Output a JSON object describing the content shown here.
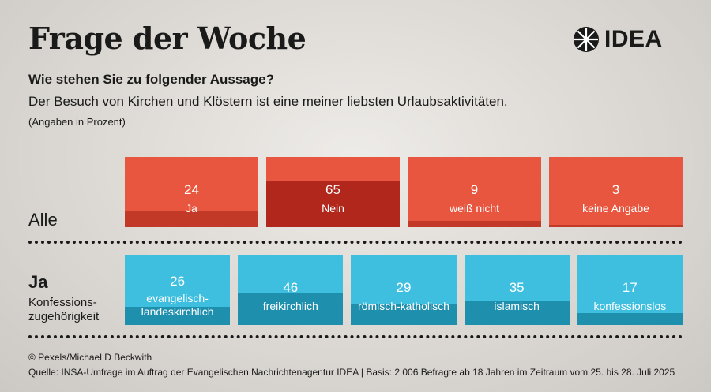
{
  "header": {
    "title": "Frage der Woche",
    "logo_text": "IDEA"
  },
  "question": "Wie stehen Sie zu folgender Aussage?",
  "statement": "Der Besuch von Kirchen und Klöstern ist eine meiner liebsten Urlaubsaktivitäten.",
  "unit": "(Angaben in Prozent)",
  "rows": {
    "all_label": "Alle",
    "ja_label": "Ja",
    "ja_sub": "Konfessions-\nzugehörigkeit"
  },
  "footer": {
    "credit": "© Pexels/Michael D Beckwith",
    "source": "Quelle: INSA-Umfrage im Auftrag der Evangelischen Nachrichtenagentur IDEA | Basis: 2.006 Befragte ab 18 Jahren im Zeitraum vom 25. bis 28. Juli 2025"
  },
  "colors": {
    "red_light": "#e8563f",
    "red_dark": "#b2271c",
    "red_fill": "#c23a27",
    "blue_light": "#3ebfe0",
    "blue_fill": "#1f8fae"
  },
  "chart_data": [
    {
      "type": "bar",
      "title": "Alle",
      "categories": [
        "Ja",
        "Nein",
        "weiß nicht",
        "keine Angabe"
      ],
      "values": [
        24,
        65,
        9,
        3
      ],
      "ylim": [
        0,
        100
      ]
    },
    {
      "type": "bar",
      "title": "Ja",
      "categories": [
        "evangelisch-landeskirchlich",
        "freikirchlich",
        "römisch-katholisch",
        "islamisch",
        "konfessionslos"
      ],
      "category_labels": [
        "evangelisch-\nlandeskirchlich",
        "freikirchlich",
        "römisch-katholisch",
        "islamisch",
        "konfessionslos"
      ],
      "values": [
        26,
        46,
        29,
        35,
        17
      ],
      "ylim": [
        0,
        100
      ]
    }
  ]
}
